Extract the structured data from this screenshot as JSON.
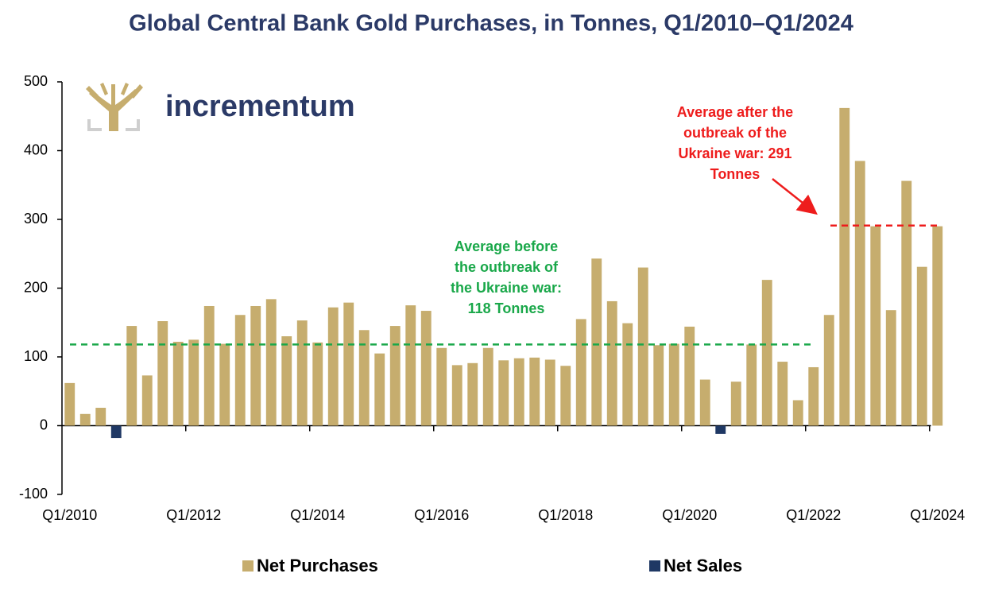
{
  "chart_data": {
    "type": "bar",
    "title": "Global Central Bank Gold Purchases, in Tonnes, Q1/2010–Q1/2024",
    "logo": "incrementum",
    "categories": [
      "Q1/2010",
      null,
      null,
      null,
      null,
      null,
      null,
      null,
      "Q1/2012",
      null,
      null,
      null,
      null,
      null,
      null,
      null,
      "Q1/2014",
      null,
      null,
      null,
      null,
      null,
      null,
      null,
      "Q1/2016",
      null,
      null,
      null,
      null,
      null,
      null,
      null,
      "Q1/2018",
      null,
      null,
      null,
      null,
      null,
      null,
      null,
      "Q1/2020",
      null,
      null,
      null,
      null,
      null,
      null,
      null,
      "Q1/2022",
      null,
      null,
      null,
      null,
      null,
      null,
      null,
      "Q1/2024"
    ],
    "series": [
      {
        "name": "Net Purchases",
        "color": "#c6ad6e",
        "values": [
          62,
          17,
          26,
          null,
          145,
          73,
          152,
          122,
          125,
          174,
          119,
          161,
          174,
          184,
          130,
          153,
          121,
          172,
          179,
          139,
          105,
          145,
          175,
          167,
          113,
          88,
          91,
          113,
          95,
          98,
          99,
          96,
          87,
          155,
          243,
          181,
          149,
          230,
          117,
          119,
          144,
          67,
          null,
          64,
          118,
          212,
          93,
          37,
          85,
          161,
          462,
          385,
          290,
          168,
          356,
          231,
          290
        ]
      },
      {
        "name": "Net Sales",
        "color": "#1f3864",
        "values": [
          null,
          null,
          null,
          -18,
          null,
          null,
          null,
          null,
          null,
          null,
          null,
          null,
          null,
          null,
          null,
          null,
          null,
          null,
          null,
          null,
          null,
          null,
          null,
          null,
          null,
          null,
          null,
          null,
          null,
          null,
          null,
          null,
          null,
          null,
          null,
          null,
          null,
          null,
          null,
          null,
          null,
          null,
          -12,
          null,
          null,
          null,
          null,
          null,
          null,
          null,
          null,
          null,
          null,
          null,
          null,
          null,
          null
        ]
      }
    ],
    "ylim": [
      -100,
      500
    ],
    "yticks": [
      -100,
      0,
      100,
      200,
      300,
      400,
      500
    ],
    "grid": false,
    "legend": "bottom",
    "reference_lines": [
      {
        "value": 118,
        "color": "#1aa84a",
        "label": [
          "Average before",
          "the outbreak of",
          "the Ukraine war:",
          "118 Tonnes"
        ]
      },
      {
        "value": 291,
        "color": "#ee1c1c",
        "label": [
          "Average after the",
          "outbreak of the",
          "Ukraine war: 291",
          "Tonnes"
        ]
      }
    ]
  }
}
